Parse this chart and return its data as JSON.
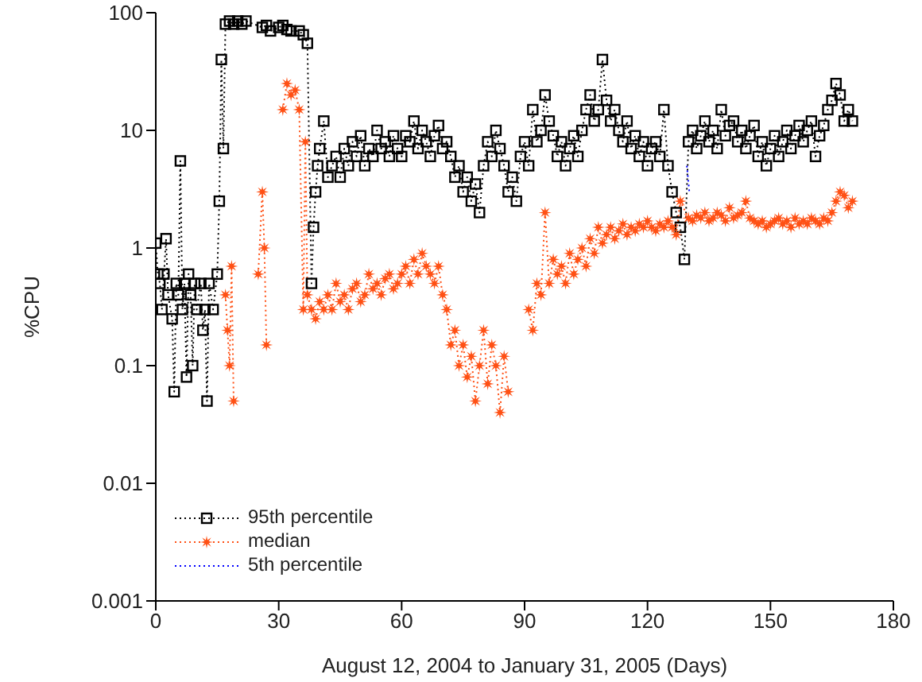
{
  "chart_data": {
    "type": "line",
    "xlabel": "August 12, 2004 to January 31, 2005 (Days)",
    "ylabel": "%CPU",
    "log": "y",
    "xlim": [
      0,
      180
    ],
    "xticks": [
      0,
      30,
      60,
      90,
      120,
      150,
      180
    ],
    "ylim": [
      0.001,
      100
    ],
    "yticks": [
      0.001,
      0.01,
      0.1,
      1,
      10,
      100
    ],
    "legend": "bottom left",
    "line_style": "dotted",
    "series": [
      {
        "name": "95th percentile",
        "color": "#000000",
        "marker": "square",
        "x": [
          0,
          0.5,
          1,
          1.5,
          2,
          2.5,
          3,
          4,
          4.5,
          5,
          5.5,
          6,
          6.5,
          7,
          7.5,
          8,
          8.5,
          9,
          9.5,
          10,
          11,
          11.5,
          12,
          12.5,
          13,
          14,
          15,
          15.5,
          16,
          16.5,
          17,
          18,
          19,
          20,
          21,
          22,
          26,
          27,
          28,
          30,
          31,
          32,
          33,
          35,
          36,
          37,
          38,
          38.5,
          39,
          39.5,
          40,
          41,
          42,
          43,
          44,
          45,
          46,
          47,
          48,
          49,
          50,
          51,
          52,
          53,
          54,
          55,
          56,
          57,
          58,
          59,
          60,
          61,
          62,
          63,
          64,
          65,
          66,
          67,
          68,
          69,
          70,
          71,
          72,
          73,
          74,
          75,
          76,
          77,
          78,
          79,
          80,
          81,
          82,
          83,
          84,
          85,
          86,
          87,
          88,
          89,
          90,
          91,
          92,
          93,
          94,
          95,
          96,
          97,
          98,
          99,
          100,
          101,
          102,
          103,
          104,
          105,
          106,
          107,
          108,
          109,
          110,
          111,
          112,
          113,
          114,
          115,
          116,
          117,
          118,
          119,
          120,
          121,
          122,
          123,
          124,
          125,
          126,
          127,
          128,
          129,
          130,
          131,
          132,
          133,
          134,
          135,
          136,
          137,
          138,
          139,
          140,
          141,
          142,
          143,
          144,
          145,
          146,
          147,
          148,
          149,
          150,
          151,
          152,
          153,
          154,
          155,
          156,
          157,
          158,
          159,
          160,
          161,
          162,
          163,
          164,
          165,
          166,
          167,
          168,
          169,
          170
        ],
        "values": [
          1.1,
          0.6,
          0.5,
          0.3,
          0.6,
          1.2,
          0.4,
          0.25,
          0.06,
          0.5,
          0.4,
          5.5,
          0.3,
          0.5,
          0.08,
          0.6,
          0.4,
          0.1,
          0.5,
          0.3,
          0.5,
          0.2,
          0.3,
          0.05,
          0.5,
          0.3,
          0.6,
          2.5,
          40,
          7,
          80,
          85,
          80,
          85,
          80,
          85,
          75,
          78,
          70,
          75,
          78,
          72,
          70,
          70,
          65,
          55,
          0.5,
          1.5,
          3,
          5,
          7,
          12,
          4,
          5,
          6,
          4,
          7,
          5,
          8,
          6,
          9,
          5,
          7,
          6,
          10,
          7,
          8,
          6,
          9,
          7,
          6,
          9,
          8,
          12,
          7,
          10,
          8,
          6,
          9,
          11,
          7,
          8,
          6,
          4,
          5,
          3,
          4,
          2.5,
          3.5,
          2,
          5,
          8,
          6,
          10,
          7,
          5,
          3,
          4,
          2.5,
          6,
          8,
          5,
          15,
          8,
          10,
          20,
          12,
          9,
          6,
          8,
          5,
          7,
          9,
          6,
          10,
          15,
          20,
          12,
          15,
          40,
          18,
          12,
          15,
          10,
          8,
          12,
          7,
          9,
          6,
          8,
          5,
          7,
          8,
          6,
          15,
          5,
          3,
          2,
          1.5,
          0.8,
          8,
          10,
          7,
          9,
          12,
          8,
          10,
          7,
          15,
          9,
          11,
          12,
          8,
          10,
          7,
          9,
          11,
          6,
          8,
          5,
          7,
          9,
          6,
          8,
          10,
          7,
          9,
          11,
          8,
          10,
          12,
          6,
          9,
          11,
          15,
          18,
          25,
          20,
          12,
          15,
          12
        ]
      },
      {
        "name": "median",
        "color": "#ff5014",
        "marker": "star",
        "x": [
          17,
          17.5,
          18,
          18.5,
          19,
          22,
          25,
          26,
          26.5,
          27,
          30,
          31,
          32,
          33,
          34,
          35,
          36,
          36.5,
          37,
          38,
          39,
          40,
          41,
          42,
          43,
          44,
          45,
          46,
          47,
          48,
          49,
          50,
          51,
          52,
          53,
          54,
          55,
          56,
          57,
          58,
          59,
          60,
          61,
          62,
          63,
          64,
          65,
          66,
          67,
          68,
          69,
          70,
          71,
          72,
          73,
          74,
          75,
          76,
          77,
          78,
          79,
          80,
          81,
          82,
          83,
          84,
          85,
          86,
          90,
          91,
          92,
          93,
          94,
          95,
          96,
          97,
          98,
          99,
          100,
          101,
          102,
          103,
          104,
          105,
          106,
          107,
          108,
          109,
          110,
          111,
          112,
          113,
          114,
          115,
          116,
          117,
          118,
          119,
          120,
          121,
          122,
          123,
          124,
          125,
          126,
          127,
          128,
          130,
          131,
          132,
          133,
          134,
          135,
          136,
          137,
          138,
          139,
          140,
          141,
          142,
          143,
          144,
          145,
          146,
          147,
          148,
          149,
          150,
          151,
          152,
          153,
          154,
          155,
          156,
          157,
          158,
          159,
          160,
          161,
          162,
          163,
          164,
          165,
          166,
          167,
          168,
          169,
          170
        ],
        "values": [
          0.4,
          0.2,
          0.1,
          0.7,
          0.05,
          null,
          0.6,
          3,
          1,
          0.15,
          null,
          15,
          25,
          20,
          22,
          15,
          0.3,
          8,
          0.4,
          0.3,
          0.25,
          0.35,
          0.3,
          0.4,
          0.3,
          0.5,
          0.35,
          0.4,
          0.3,
          0.45,
          0.5,
          0.35,
          0.4,
          0.6,
          0.45,
          0.5,
          0.4,
          0.55,
          0.6,
          0.45,
          0.5,
          0.6,
          0.7,
          0.5,
          0.8,
          0.6,
          0.9,
          0.7,
          0.6,
          0.5,
          0.7,
          0.4,
          0.3,
          0.15,
          0.2,
          0.1,
          0.15,
          0.08,
          0.12,
          0.05,
          0.1,
          0.2,
          0.07,
          0.15,
          0.1,
          0.04,
          0.12,
          0.06,
          null,
          0.3,
          0.2,
          0.5,
          0.4,
          2,
          0.5,
          0.8,
          0.6,
          0.7,
          0.5,
          0.9,
          0.6,
          0.8,
          1,
          0.7,
          1.2,
          0.9,
          1.5,
          1.1,
          1.3,
          1.5,
          1.2,
          1.4,
          1.6,
          1.3,
          1.5,
          1.4,
          1.6,
          1.5,
          1.7,
          1.5,
          1.4,
          1.6,
          1.5,
          1.7,
          1.5,
          1.3,
          2.5,
          1.8,
          1.7,
          1.9,
          1.8,
          2,
          1.7,
          1.8,
          2,
          1.9,
          1.7,
          2.2,
          1.8,
          1.9,
          2,
          2.5,
          1.8,
          1.7,
          1.6,
          1.7,
          1.5,
          1.6,
          1.7,
          1.8,
          1.6,
          1.7,
          1.5,
          1.8,
          1.6,
          1.7,
          1.6,
          1.8,
          1.7,
          1.6,
          1.8,
          1.7,
          2,
          2.5,
          3,
          2.8,
          2.2,
          2.5
        ]
      },
      {
        "name": "5th percentile",
        "color": "#0000ff",
        "marker": "none",
        "x": [
          129.6,
          130.2
        ],
        "values": [
          5,
          3
        ]
      }
    ]
  }
}
